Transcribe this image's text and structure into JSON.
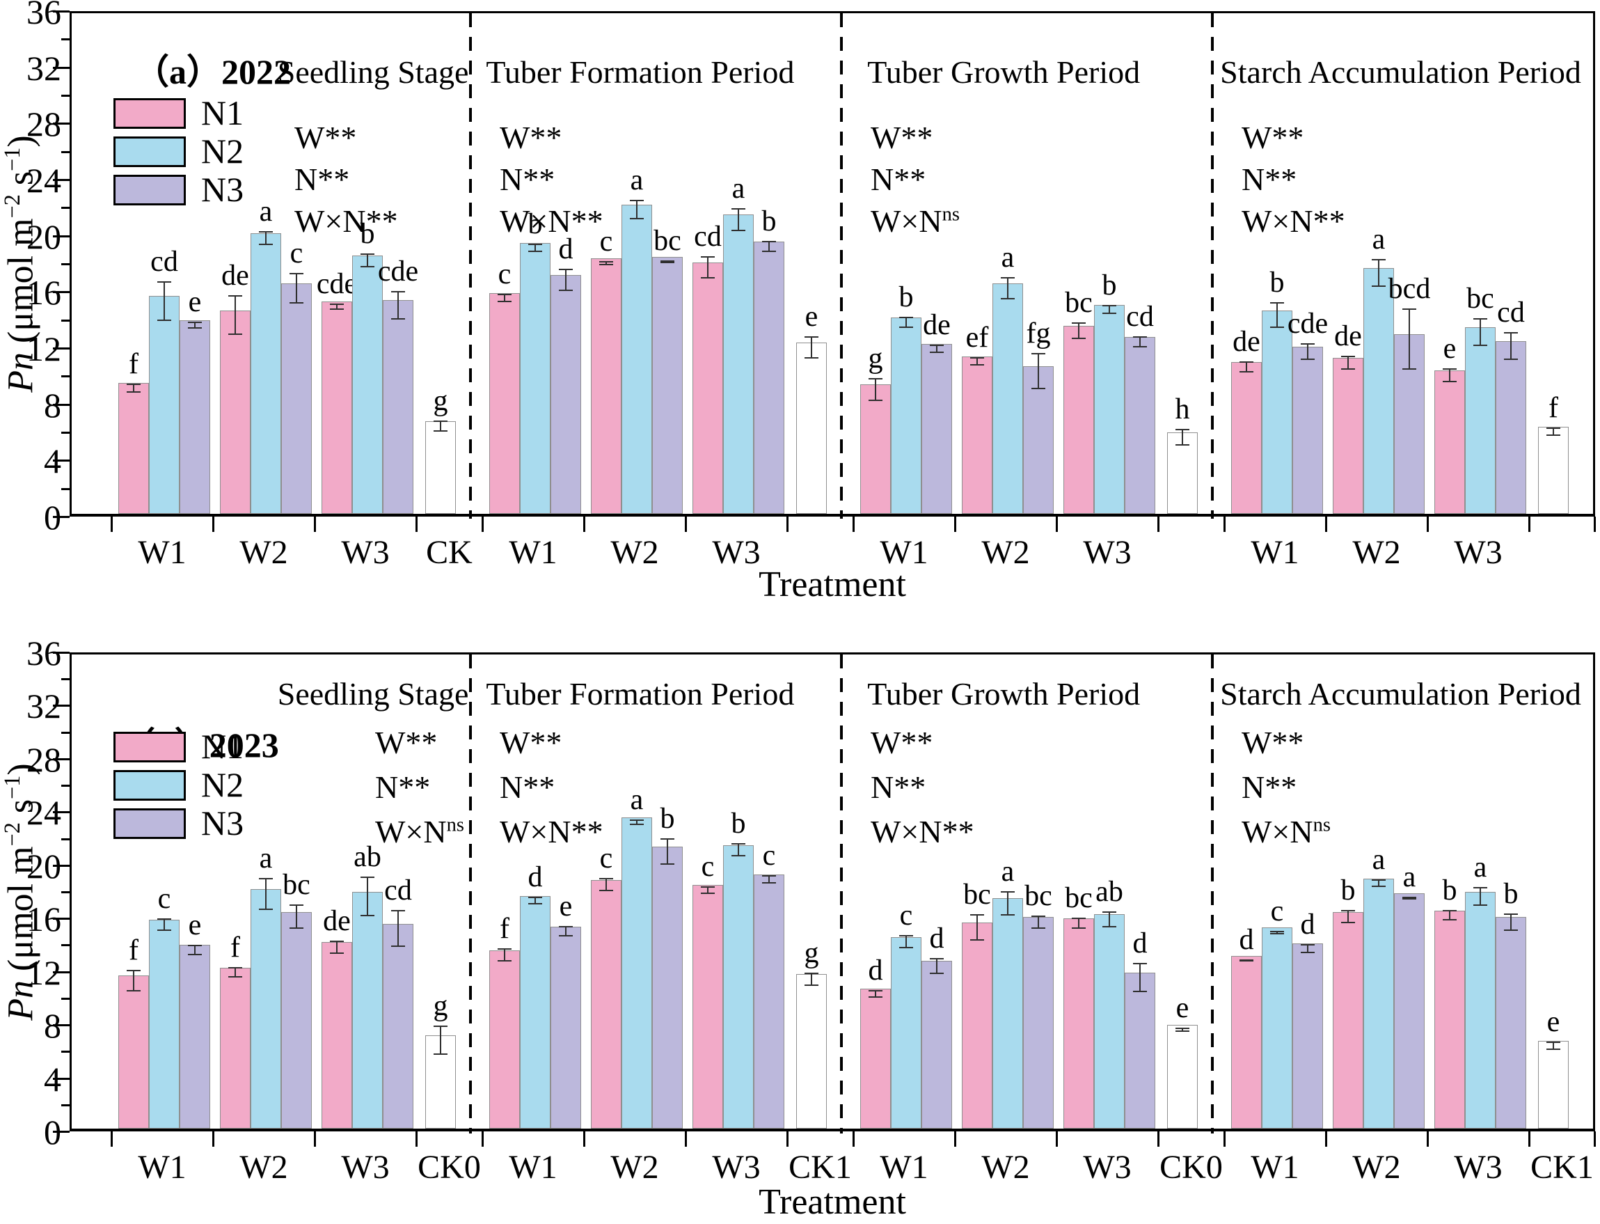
{
  "figure": {
    "x_axis_title": "Treatment",
    "y_axis": {
      "var": "Pn",
      "units_pre": " (μmol m",
      "sup1": "−2",
      "mid": " s",
      "sup2": "−1",
      "post": ")"
    },
    "y_label_plain": "Pn (μmol m−2 s−1)",
    "colors": {
      "N1": "#F2AAC8",
      "N2": "#A9DBEE",
      "N3": "#BCB8DC",
      "CK": "#FFFFFF",
      "bar_border": "#8f8f8f",
      "error_bar": "#2f2f2f",
      "axis": "#000000"
    },
    "legend": [
      "N1",
      "N2",
      "N3"
    ]
  },
  "chart_data": [
    {
      "type": "bar",
      "panel_label": "（a）2022",
      "xlabel": "Treatment",
      "ylabel": "Pn (μmol m−2 s−1)",
      "ylim": [
        0,
        36
      ],
      "ytick_step": 4,
      "legend": [
        "N1",
        "N2",
        "N3"
      ],
      "sections": [
        {
          "title": "Seedling Stage",
          "significance": {
            "W": "**",
            "N": "**",
            "WxN": "**"
          },
          "groups": [
            {
              "label": "W1",
              "bars": [
                {
                  "series": "N1",
                  "value": 9.3,
                  "err": 0.3,
                  "letter": "f"
                },
                {
                  "series": "N2",
                  "value": 15.5,
                  "err": 1.4,
                  "letter": "cd"
                },
                {
                  "series": "N3",
                  "value": 13.8,
                  "err": 0.25,
                  "letter": "e"
                }
              ]
            },
            {
              "label": "W2",
              "bars": [
                {
                  "series": "N1",
                  "value": 14.5,
                  "err": 1.4,
                  "letter": "de"
                },
                {
                  "series": "N2",
                  "value": 20.0,
                  "err": 0.5,
                  "letter": "a"
                },
                {
                  "series": "N3",
                  "value": 16.4,
                  "err": 1.1,
                  "letter": "c"
                }
              ]
            },
            {
              "label": "W3",
              "bars": [
                {
                  "series": "N1",
                  "value": 15.1,
                  "err": 0.2,
                  "letter": "cde"
                },
                {
                  "series": "N2",
                  "value": 18.4,
                  "err": 0.5,
                  "letter": "b"
                },
                {
                  "series": "N3",
                  "value": 15.2,
                  "err": 1.0,
                  "letter": "cde"
                }
              ]
            },
            {
              "label": "CK",
              "bars": [
                {
                  "series": "CK",
                  "value": 6.6,
                  "err": 0.4,
                  "letter": "g"
                }
              ]
            }
          ]
        },
        {
          "title": "Tuber Formation Period",
          "significance": {
            "W": "**",
            "N": "**",
            "WxN": "**"
          },
          "groups": [
            {
              "label": "W1",
              "bars": [
                {
                  "series": "N1",
                  "value": 15.7,
                  "err": 0.3,
                  "letter": "c"
                },
                {
                  "series": "N2",
                  "value": 19.3,
                  "err": 0.3,
                  "letter": "b"
                },
                {
                  "series": "N3",
                  "value": 17.0,
                  "err": 0.8,
                  "letter": "d"
                }
              ]
            },
            {
              "label": "W2",
              "bars": [
                {
                  "series": "N1",
                  "value": 18.2,
                  "err": 0.15,
                  "letter": "c"
                },
                {
                  "series": "N2",
                  "value": 22.0,
                  "err": 0.7,
                  "letter": "a"
                },
                {
                  "series": "N3",
                  "value": 18.3,
                  "err": 0.1,
                  "letter": "bc"
                }
              ]
            },
            {
              "label": "W3",
              "bars": [
                {
                  "series": "N1",
                  "value": 17.9,
                  "err": 0.8,
                  "letter": "cd"
                },
                {
                  "series": "N2",
                  "value": 21.3,
                  "err": 0.8,
                  "letter": "a"
                },
                {
                  "series": "N3",
                  "value": 19.4,
                  "err": 0.4,
                  "letter": "b"
                }
              ]
            },
            {
              "label": "",
              "bars": [
                {
                  "series": "CK",
                  "value": 12.2,
                  "err": 0.8,
                  "letter": "e"
                }
              ]
            }
          ]
        },
        {
          "title": "Tuber Growth Period",
          "significance": {
            "W": "**",
            "N": "**",
            "WxN": "ns"
          },
          "groups": [
            {
              "label": "W1",
              "bars": [
                {
                  "series": "N1",
                  "value": 9.2,
                  "err": 0.8,
                  "letter": "g"
                },
                {
                  "series": "N2",
                  "value": 14.0,
                  "err": 0.4,
                  "letter": "b"
                },
                {
                  "series": "N3",
                  "value": 12.1,
                  "err": 0.3,
                  "letter": "de"
                }
              ]
            },
            {
              "label": "W2",
              "bars": [
                {
                  "series": "N1",
                  "value": 11.2,
                  "err": 0.3,
                  "letter": "ef"
                },
                {
                  "series": "N2",
                  "value": 16.4,
                  "err": 0.8,
                  "letter": "a"
                },
                {
                  "series": "N3",
                  "value": 10.5,
                  "err": 1.3,
                  "letter": "fg"
                }
              ]
            },
            {
              "label": "W3",
              "bars": [
                {
                  "series": "N1",
                  "value": 13.4,
                  "err": 0.6,
                  "letter": "bc"
                },
                {
                  "series": "N2",
                  "value": 14.9,
                  "err": 0.3,
                  "letter": "b"
                },
                {
                  "series": "N3",
                  "value": 12.6,
                  "err": 0.4,
                  "letter": "cd"
                }
              ]
            },
            {
              "label": "",
              "bars": [
                {
                  "series": "CK",
                  "value": 5.8,
                  "err": 0.6,
                  "letter": "h"
                }
              ]
            }
          ]
        },
        {
          "title": "Starch Accumulation Period",
          "significance": {
            "W": "**",
            "N": "**",
            "WxN": "**"
          },
          "groups": [
            {
              "label": "W1",
              "bars": [
                {
                  "series": "N1",
                  "value": 10.8,
                  "err": 0.4,
                  "letter": "de"
                },
                {
                  "series": "N2",
                  "value": 14.5,
                  "err": 0.9,
                  "letter": "b"
                },
                {
                  "series": "N3",
                  "value": 11.9,
                  "err": 0.6,
                  "letter": "cde"
                }
              ]
            },
            {
              "label": "W2",
              "bars": [
                {
                  "series": "N1",
                  "value": 11.1,
                  "err": 0.5,
                  "letter": "de"
                },
                {
                  "series": "N2",
                  "value": 17.5,
                  "err": 1.0,
                  "letter": "a"
                },
                {
                  "series": "N3",
                  "value": 12.8,
                  "err": 2.2,
                  "letter": "bcd"
                }
              ]
            },
            {
              "label": "W3",
              "bars": [
                {
                  "series": "N1",
                  "value": 10.2,
                  "err": 0.5,
                  "letter": "e"
                },
                {
                  "series": "N2",
                  "value": 13.3,
                  "err": 1.0,
                  "letter": "bc"
                },
                {
                  "series": "N3",
                  "value": 12.3,
                  "err": 1.0,
                  "letter": "cd"
                }
              ]
            },
            {
              "label": "",
              "bars": [
                {
                  "series": "CK",
                  "value": 6.2,
                  "err": 0.3,
                  "letter": "f"
                }
              ]
            }
          ]
        }
      ]
    },
    {
      "type": "bar",
      "panel_label": "（b）2023",
      "xlabel": "Treatment",
      "ylabel": "Pn (μmol m−2 s−1)",
      "ylim": [
        0,
        36
      ],
      "ytick_step": 4,
      "legend": [
        "N1",
        "N2",
        "N3"
      ],
      "sections": [
        {
          "title": "Seedling Stage",
          "significance": {
            "W": "**",
            "N": "**",
            "WxN": "ns"
          },
          "groups": [
            {
              "label": "W1",
              "bars": [
                {
                  "series": "N1",
                  "value": 11.5,
                  "err": 0.8,
                  "letter": "f"
                },
                {
                  "series": "N2",
                  "value": 15.7,
                  "err": 0.45,
                  "letter": "c"
                },
                {
                  "series": "N3",
                  "value": 13.8,
                  "err": 0.4,
                  "letter": "e"
                }
              ]
            },
            {
              "label": "W2",
              "bars": [
                {
                  "series": "N1",
                  "value": 12.1,
                  "err": 0.4,
                  "letter": "f"
                },
                {
                  "series": "N2",
                  "value": 18.0,
                  "err": 1.2,
                  "letter": "a"
                },
                {
                  "series": "N3",
                  "value": 16.3,
                  "err": 0.9,
                  "letter": "bc"
                }
              ]
            },
            {
              "label": "W3",
              "bars": [
                {
                  "series": "N1",
                  "value": 14.0,
                  "err": 0.5,
                  "letter": "de"
                },
                {
                  "series": "N2",
                  "value": 17.8,
                  "err": 1.5,
                  "letter": "ab"
                },
                {
                  "series": "N3",
                  "value": 15.4,
                  "err": 1.4,
                  "letter": "cd"
                }
              ]
            },
            {
              "label": "CK0",
              "bars": [
                {
                  "series": "CK",
                  "value": 7.0,
                  "err": 1.1,
                  "letter": "g"
                }
              ]
            }
          ]
        },
        {
          "title": "Tuber Formation Period",
          "significance": {
            "W": "**",
            "N": "**",
            "WxN": "**"
          },
          "groups": [
            {
              "label": "W1",
              "bars": [
                {
                  "series": "N1",
                  "value": 13.4,
                  "err": 0.5,
                  "letter": "f"
                },
                {
                  "series": "N2",
                  "value": 17.5,
                  "err": 0.3,
                  "letter": "d"
                },
                {
                  "series": "N3",
                  "value": 15.2,
                  "err": 0.4,
                  "letter": "e"
                }
              ]
            },
            {
              "label": "W2",
              "bars": [
                {
                  "series": "N1",
                  "value": 18.7,
                  "err": 0.5,
                  "letter": "c"
                },
                {
                  "series": "N2",
                  "value": 23.4,
                  "err": 0.2,
                  "letter": "a"
                },
                {
                  "series": "N3",
                  "value": 21.2,
                  "err": 1.0,
                  "letter": "b"
                }
              ]
            },
            {
              "label": "W3",
              "bars": [
                {
                  "series": "N1",
                  "value": 18.3,
                  "err": 0.3,
                  "letter": "c"
                },
                {
                  "series": "N2",
                  "value": 21.3,
                  "err": 0.5,
                  "letter": "b"
                },
                {
                  "series": "N3",
                  "value": 19.1,
                  "err": 0.3,
                  "letter": "c"
                }
              ]
            },
            {
              "label": "CK1",
              "bars": [
                {
                  "series": "CK",
                  "value": 11.6,
                  "err": 0.5,
                  "letter": "g"
                }
              ]
            }
          ]
        },
        {
          "title": "Tuber Growth Period",
          "significance": {
            "W": "**",
            "N": "**",
            "WxN": "**"
          },
          "groups": [
            {
              "label": "W1",
              "bars": [
                {
                  "series": "N1",
                  "value": 10.5,
                  "err": 0.3,
                  "letter": "d"
                },
                {
                  "series": "N2",
                  "value": 14.4,
                  "err": 0.5,
                  "letter": "c"
                },
                {
                  "series": "N3",
                  "value": 12.6,
                  "err": 0.6,
                  "letter": "d"
                }
              ]
            },
            {
              "label": "W2",
              "bars": [
                {
                  "series": "N1",
                  "value": 15.5,
                  "err": 1.0,
                  "letter": "bc"
                },
                {
                  "series": "N2",
                  "value": 17.3,
                  "err": 0.9,
                  "letter": "a"
                },
                {
                  "series": "N3",
                  "value": 15.9,
                  "err": 0.5,
                  "letter": "bc"
                }
              ]
            },
            {
              "label": "W3",
              "bars": [
                {
                  "series": "N1",
                  "value": 15.8,
                  "err": 0.4,
                  "letter": "bc"
                },
                {
                  "series": "N2",
                  "value": 16.1,
                  "err": 0.6,
                  "letter": "ab"
                },
                {
                  "series": "N3",
                  "value": 11.7,
                  "err": 1.1,
                  "letter": "d"
                }
              ]
            },
            {
              "label": "CK0",
              "bars": [
                {
                  "series": "CK",
                  "value": 7.8,
                  "err": 0.15,
                  "letter": "e"
                }
              ]
            }
          ]
        },
        {
          "title": "Starch Accumulation Period",
          "significance": {
            "W": "**",
            "N": "**",
            "WxN": "ns"
          },
          "groups": [
            {
              "label": "W1",
              "bars": [
                {
                  "series": "N1",
                  "value": 13.0,
                  "err": 0.1,
                  "letter": "d"
                },
                {
                  "series": "N2",
                  "value": 15.1,
                  "err": 0.15,
                  "letter": "c"
                },
                {
                  "series": "N3",
                  "value": 13.9,
                  "err": 0.35,
                  "letter": "d"
                }
              ]
            },
            {
              "label": "W2",
              "bars": [
                {
                  "series": "N1",
                  "value": 16.3,
                  "err": 0.5,
                  "letter": "b"
                },
                {
                  "series": "N2",
                  "value": 18.8,
                  "err": 0.3,
                  "letter": "a"
                },
                {
                  "series": "N3",
                  "value": 17.7,
                  "err": 0.1,
                  "letter": "a"
                }
              ]
            },
            {
              "label": "W3",
              "bars": [
                {
                  "series": "N1",
                  "value": 16.4,
                  "err": 0.4,
                  "letter": "b"
                },
                {
                  "series": "N2",
                  "value": 17.8,
                  "err": 0.7,
                  "letter": "a"
                },
                {
                  "series": "N3",
                  "value": 15.9,
                  "err": 0.65,
                  "letter": "b"
                }
              ]
            },
            {
              "label": "CK1",
              "bars": [
                {
                  "series": "CK",
                  "value": 6.6,
                  "err": 0.3,
                  "letter": "e"
                }
              ]
            }
          ]
        }
      ]
    }
  ]
}
